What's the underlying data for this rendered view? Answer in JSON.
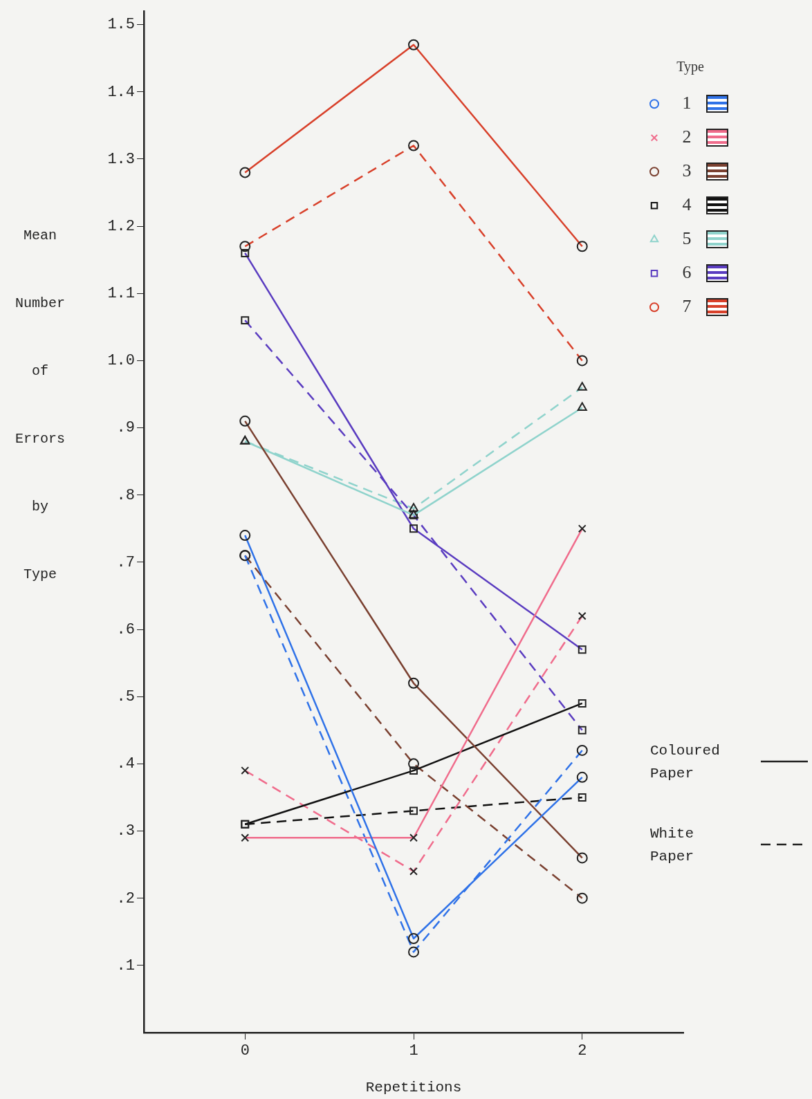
{
  "chart_data": {
    "type": "line",
    "xlabel": "Repetitions",
    "ylabel": "Mean Number of Errors by Type",
    "legend_title": "Type",
    "x": [
      0,
      1,
      2
    ],
    "xlim": [
      -0.6,
      2.6
    ],
    "xticks": [
      0,
      1,
      2
    ],
    "ylim": [
      0,
      1.52
    ],
    "yticks": [
      {
        "value": 0.1,
        "label": ".1"
      },
      {
        "value": 0.2,
        "label": ".2"
      },
      {
        "value": 0.3,
        "label": ".3"
      },
      {
        "value": 0.4,
        "label": ".4"
      },
      {
        "value": 0.5,
        "label": ".5"
      },
      {
        "value": 0.6,
        "label": ".6"
      },
      {
        "value": 0.7,
        "label": ".7"
      },
      {
        "value": 0.8,
        "label": ".8"
      },
      {
        "value": 0.9,
        "label": ".9"
      },
      {
        "value": 1.0,
        "label": "1.0"
      },
      {
        "value": 1.1,
        "label": "1.1"
      },
      {
        "value": 1.2,
        "label": "1.2"
      },
      {
        "value": 1.3,
        "label": "1.3"
      },
      {
        "value": 1.4,
        "label": "1.4"
      },
      {
        "value": 1.5,
        "label": "1.5"
      }
    ],
    "grid": false,
    "legend": "top right",
    "series": [
      {
        "name": "1",
        "color": "#2f72e8",
        "marker": "circle",
        "line_style": "solid",
        "values": [
          0.74,
          0.14,
          0.38
        ]
      },
      {
        "name": "2",
        "color": "#f06c8c",
        "marker": "cross",
        "line_style": "solid",
        "values": [
          0.29,
          0.29,
          0.75
        ]
      },
      {
        "name": "3",
        "color": "#7a4030",
        "marker": "circle",
        "line_style": "solid",
        "values": [
          0.91,
          0.52,
          0.26
        ]
      },
      {
        "name": "4",
        "color": "#111111",
        "marker": "square",
        "line_style": "solid",
        "values": [
          0.31,
          0.39,
          0.49
        ]
      },
      {
        "name": "5",
        "color": "#8fd3cc",
        "marker": "triangle",
        "line_style": "solid",
        "values": [
          0.88,
          0.77,
          0.93
        ]
      },
      {
        "name": "6",
        "color": "#5a3cc0",
        "marker": "square",
        "line_style": "solid",
        "values": [
          1.16,
          0.75,
          0.57
        ]
      },
      {
        "name": "7",
        "color": "#d8402a",
        "marker": "circle",
        "line_style": "solid",
        "values": [
          1.28,
          1.47,
          1.17
        ]
      },
      {
        "color": "#2f72e8",
        "marker": "circle",
        "line_style": "dashed",
        "values": [
          0.71,
          0.12,
          0.42
        ]
      },
      {
        "color": "#f06c8c",
        "marker": "cross",
        "line_style": "dashed",
        "values": [
          0.39,
          0.24,
          0.62
        ]
      },
      {
        "color": "#7a4030",
        "marker": "circle",
        "line_style": "dashed",
        "values": [
          0.71,
          0.4,
          0.2
        ]
      },
      {
        "color": "#111111",
        "marker": "square",
        "line_style": "dashed",
        "values": [
          0.31,
          0.33,
          0.35
        ]
      },
      {
        "color": "#8fd3cc",
        "marker": "triangle",
        "line_style": "dashed",
        "values": [
          0.88,
          0.78,
          0.96
        ]
      },
      {
        "color": "#5a3cc0",
        "marker": "square",
        "line_style": "dashed",
        "values": [
          1.06,
          0.77,
          0.45
        ]
      },
      {
        "color": "#d8402a",
        "marker": "circle",
        "line_style": "dashed",
        "values": [
          1.17,
          1.32,
          1.0
        ]
      }
    ],
    "annotations": [
      "Coloured Paper",
      "White Paper"
    ]
  }
}
